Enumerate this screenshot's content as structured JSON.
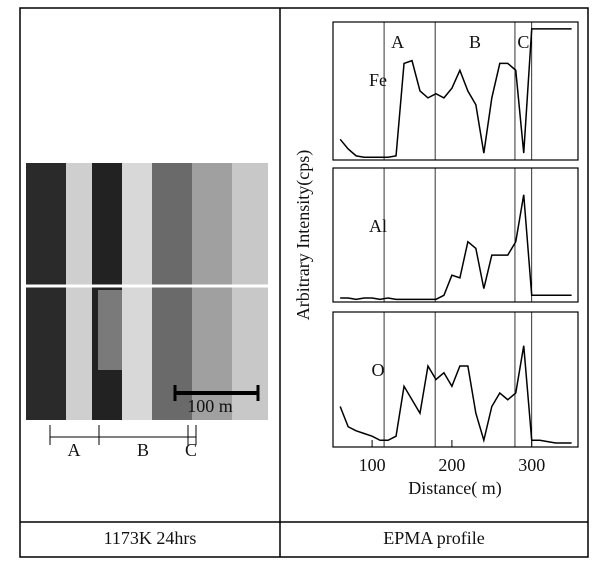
{
  "captions": {
    "left": "1173K 24hrs",
    "right": "EPMA profile"
  },
  "micrograph": {
    "scale_bar": "100 m",
    "zones": [
      "A",
      "B",
      "C"
    ]
  },
  "chart_data": {
    "type": "line",
    "ylabel": "Arbitrary Intensity(cps)",
    "xlabel": "Distance( m)",
    "zone_labels": [
      "A",
      "B",
      "C"
    ],
    "boundaries": [
      115,
      179,
      279,
      300
    ],
    "x": [
      60,
      70,
      80,
      90,
      100,
      110,
      120,
      130,
      140,
      150,
      160,
      170,
      180,
      190,
      200,
      210,
      220,
      230,
      240,
      250,
      260,
      270,
      280,
      290,
      300,
      310,
      320,
      330,
      340,
      350
    ],
    "series": [
      {
        "name": "Fe",
        "color": "#000000",
        "values": [
          15,
          8,
          3,
          2,
          2,
          2,
          2,
          3,
          70,
          72,
          50,
          45,
          48,
          45,
          52,
          65,
          50,
          40,
          5,
          45,
          70,
          70,
          65,
          5,
          95,
          95,
          95,
          95,
          95,
          95
        ]
      },
      {
        "name": "Al",
        "color": "#000000",
        "values": [
          3,
          3,
          2,
          3,
          3,
          2,
          3,
          2,
          2,
          2,
          2,
          2,
          2,
          5,
          20,
          18,
          45,
          40,
          10,
          35,
          35,
          35,
          45,
          80,
          5,
          5,
          5,
          5,
          5,
          5
        ]
      },
      {
        "name": "O",
        "color": "#000000",
        "values": [
          30,
          15,
          12,
          10,
          8,
          5,
          5,
          8,
          45,
          35,
          25,
          60,
          50,
          55,
          45,
          60,
          60,
          25,
          5,
          30,
          40,
          35,
          40,
          75,
          5,
          5,
          4,
          3,
          3,
          3
        ]
      }
    ],
    "xlim": [
      51,
      358
    ],
    "xticks": [
      100,
      200,
      300
    ],
    "ylim": [
      0,
      100
    ]
  }
}
